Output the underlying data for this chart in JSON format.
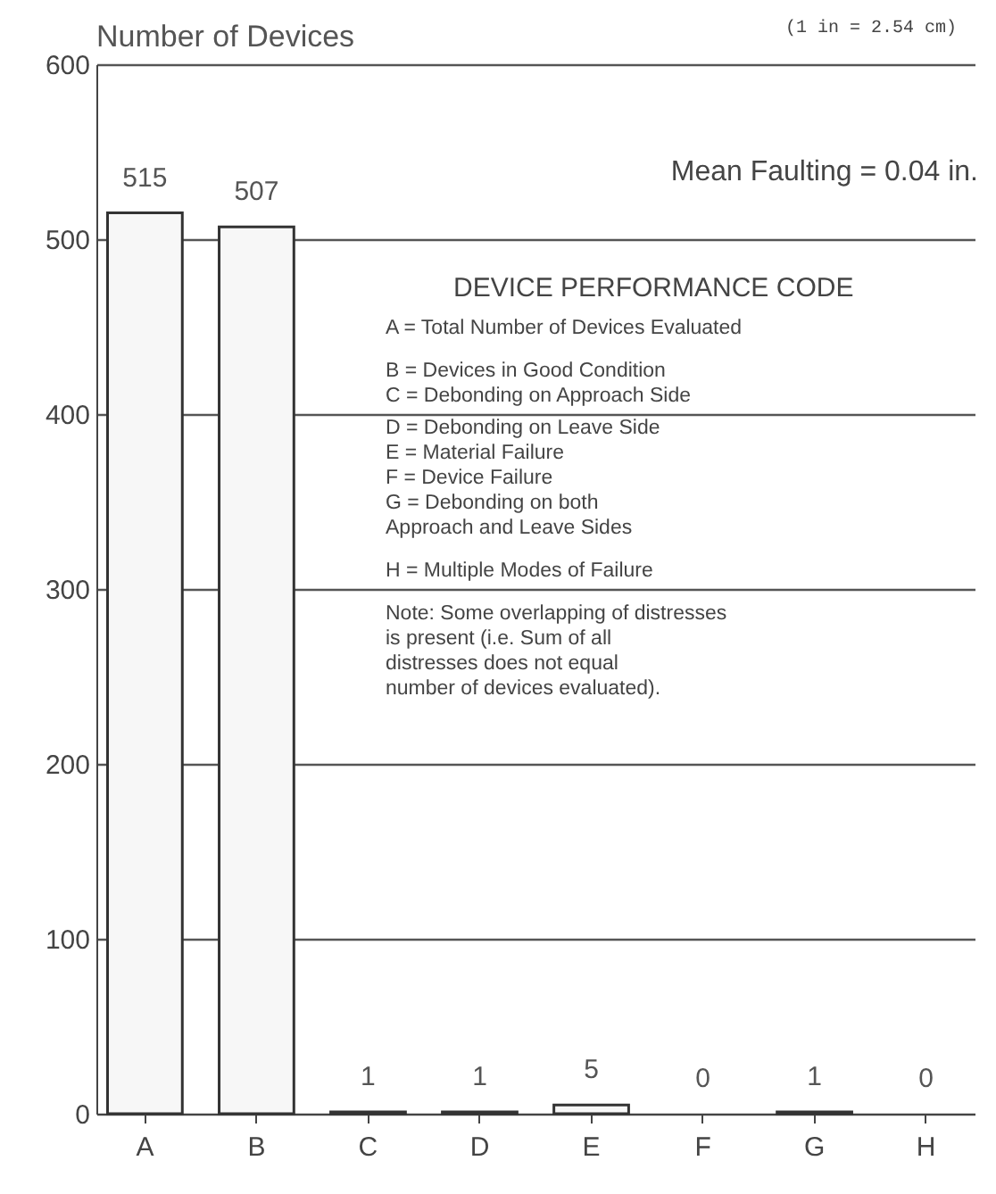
{
  "chart_data": {
    "type": "bar",
    "ylabel": "Number of Devices",
    "categories": [
      "A",
      "B",
      "C",
      "D",
      "E",
      "F",
      "G",
      "H"
    ],
    "values": [
      515,
      507,
      1,
      1,
      5,
      0,
      1,
      0
    ],
    "color": "#f7f7f7",
    "data_labels": true,
    "ylim": [
      0,
      600
    ],
    "yticks": [
      0,
      100,
      200,
      300,
      400,
      500,
      600
    ],
    "grid": "y",
    "annotations": [
      "(1 in = 2.54 cm)",
      "Mean Faulting = 0.04 in.",
      "DEVICE PERFORMANCE CODE",
      "A = Total Number of Devices Evaluated",
      "B = Devices in Good Condition",
      "C = Debonding on Approach Side",
      "D = Debonding on Leave Side",
      "E = Material Failure",
      "F = Device Failure",
      "G = Debonding on both\n      Approach and Leave Sides",
      "H = Multiple Modes of Failure",
      "Note: Some overlapping of distresses\n          is present (i.e. Sum of all\n          distresses does not equal\n          number of devices evaluated)."
    ]
  }
}
